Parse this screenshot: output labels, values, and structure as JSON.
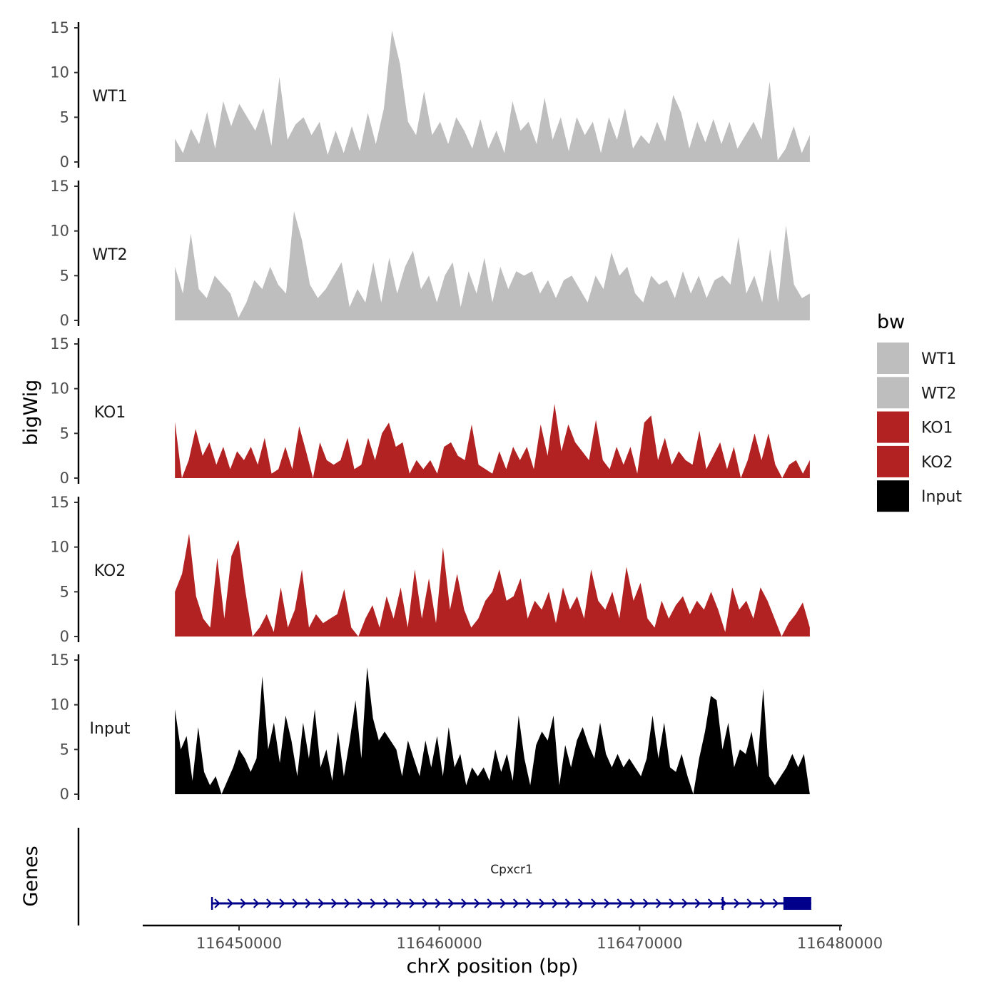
{
  "chart_data": {
    "type": "area",
    "ylabel": "bigWig",
    "xlabel": "chrX position (bp)",
    "x_range": [
      116446800,
      116478500
    ],
    "xlim": [
      116445190,
      116480100
    ],
    "ylim": [
      0,
      15
    ],
    "y_ticks": [
      "0",
      "5",
      "10",
      "15"
    ],
    "x_ticks": [
      {
        "value": 116450000,
        "label": "116450000"
      },
      {
        "value": 116460000,
        "label": "116460000"
      },
      {
        "value": 116470000,
        "label": "116470000"
      },
      {
        "value": 116480000,
        "label": "116480000"
      }
    ],
    "legend": {
      "title": "bw",
      "position": "right",
      "entries": [
        {
          "label": "WT1",
          "color": "#bebebe"
        },
        {
          "label": "WT2",
          "color": "#bebebe"
        },
        {
          "label": "KO1",
          "color": "#b22222"
        },
        {
          "label": "KO2",
          "color": "#b22222"
        },
        {
          "label": "Input",
          "color": "#000000"
        }
      ]
    },
    "series": [
      {
        "name": "WT1",
        "color": "#bebebe",
        "values": [
          2.6,
          1,
          3.7,
          2,
          5.6,
          1.5,
          6.8,
          4,
          6.5,
          5,
          3.5,
          6,
          1.8,
          9.5,
          2.5,
          4.2,
          5,
          3,
          4.5,
          0.8,
          3.5,
          1,
          4,
          1.2,
          5.5,
          2,
          6,
          14.7,
          11,
          4.5,
          3,
          7.9,
          3,
          4.5,
          2,
          5,
          3.5,
          1.5,
          4.8,
          1.5,
          3.5,
          1,
          6.8,
          3.5,
          4.5,
          2,
          7.2,
          2.5,
          5,
          1.2,
          5,
          3,
          4.5,
          1,
          5,
          2.5,
          6,
          1.5,
          3,
          2,
          4.5,
          2.3,
          7.5,
          5.5,
          1.5,
          4.5,
          2.2,
          4.8,
          2,
          4.5,
          1.5,
          3,
          4.5,
          2.5,
          9,
          0.2,
          1.5,
          4,
          1,
          3
        ]
      },
      {
        "name": "WT2",
        "color": "#bebebe",
        "values": [
          6,
          3,
          9.7,
          3.5,
          2.5,
          5,
          4,
          3,
          0.3,
          2,
          4.5,
          3.5,
          6,
          4,
          3,
          12.2,
          9,
          4,
          2.5,
          3.5,
          5,
          6.5,
          1.5,
          3.5,
          2,
          6.5,
          2,
          7,
          3,
          6,
          7.8,
          3.5,
          5,
          2,
          5,
          6.5,
          1.5,
          5.5,
          3,
          7,
          2,
          6,
          3.5,
          5.5,
          5,
          5.5,
          3,
          4.5,
          2.5,
          4.5,
          5,
          3.5,
          2,
          5,
          3.5,
          7.6,
          5,
          6,
          3,
          2,
          5,
          4,
          4.5,
          2.5,
          5.5,
          3,
          5,
          2.5,
          4.5,
          5,
          4,
          9.3,
          3,
          5,
          2,
          8,
          2,
          10.6,
          4,
          2.5,
          3
        ]
      },
      {
        "name": "KO1",
        "color": "#b22222",
        "values": [
          6.3,
          0,
          2,
          5.5,
          2.5,
          4,
          1.5,
          3.5,
          1,
          3,
          2,
          3.5,
          1.5,
          4.5,
          0.5,
          1,
          3.5,
          1,
          5.8,
          3,
          0,
          4,
          2,
          1.5,
          2,
          4.5,
          1,
          1.5,
          4.5,
          2,
          5,
          6.2,
          3.5,
          4,
          0.5,
          2,
          1,
          2,
          0.5,
          3.5,
          4,
          2.5,
          2,
          6,
          1.5,
          1,
          0.5,
          3,
          1,
          3.5,
          2,
          3.5,
          1,
          6,
          2.5,
          8.3,
          3,
          6,
          4,
          3,
          2,
          6.5,
          2,
          1,
          3.5,
          1.5,
          3.5,
          0.5,
          6.2,
          7,
          2,
          4.5,
          1.5,
          3,
          2,
          1.5,
          5.3,
          1,
          2.5,
          4,
          1,
          3.5,
          0,
          2,
          5,
          2,
          5,
          1.5,
          0,
          1.5,
          2,
          0.5,
          2
        ]
      },
      {
        "name": "KO2",
        "color": "#b22222",
        "values": [
          5,
          7,
          11.5,
          4.5,
          2,
          1,
          8.8,
          2,
          9,
          10.8,
          5,
          0,
          1,
          2.5,
          0.5,
          5.5,
          1,
          3,
          7.5,
          1,
          2.5,
          1.5,
          2,
          2.5,
          5.3,
          1,
          0,
          2,
          3.5,
          1,
          4.5,
          2,
          5.5,
          1,
          7.5,
          2,
          6.5,
          1.5,
          10,
          3,
          7,
          3,
          1,
          2,
          4,
          5,
          7.5,
          4,
          4.5,
          6.5,
          2,
          4,
          3,
          5,
          1.5,
          5.5,
          3,
          4.5,
          2,
          7.5,
          4,
          3,
          5,
          2,
          7.8,
          4,
          6,
          2,
          1,
          4,
          2,
          3.5,
          4.5,
          2.5,
          4,
          3,
          5,
          3,
          0.5,
          5.5,
          3,
          4,
          2,
          5.5,
          4,
          2,
          0,
          1.5,
          2.5,
          3.8,
          1
        ]
      },
      {
        "name": "Input",
        "color": "#000000",
        "values": [
          9.5,
          5,
          6.5,
          1.5,
          7.5,
          2.5,
          1,
          2,
          0,
          1.5,
          3,
          5,
          4,
          2.5,
          4,
          13.2,
          5,
          8,
          3.5,
          8.8,
          6,
          2,
          8,
          4,
          9.5,
          3,
          5,
          1.5,
          7,
          2,
          6,
          10.5,
          4,
          14.2,
          8.5,
          6,
          7,
          6,
          5,
          2,
          6,
          4,
          2,
          6,
          3,
          6.5,
          2,
          7.5,
          3,
          4.5,
          1,
          3,
          2,
          3,
          1.5,
          5,
          2.5,
          4.5,
          1.5,
          8.8,
          4,
          1,
          5.5,
          7,
          6,
          8.8,
          1,
          5.5,
          3,
          6,
          7.5,
          5.5,
          4,
          8,
          4.5,
          3,
          4.5,
          3,
          4,
          3,
          2,
          4,
          8.8,
          4,
          8,
          3,
          2.5,
          4.5,
          2,
          0,
          4,
          7,
          11,
          10.5,
          5,
          8,
          3,
          5,
          4.5,
          7,
          3,
          11.8,
          2,
          1,
          2,
          3,
          4.5,
          3,
          4.5,
          0
        ]
      }
    ],
    "genes_track": {
      "label": "Genes",
      "genes": [
        {
          "name": "Cpxcr1",
          "start": 116448650,
          "end": 116478570,
          "thick_start": 116477180,
          "thick_end": 116478570,
          "exon_boundary": 116474150,
          "strand": "+",
          "color": "#00008b"
        }
      ]
    }
  }
}
